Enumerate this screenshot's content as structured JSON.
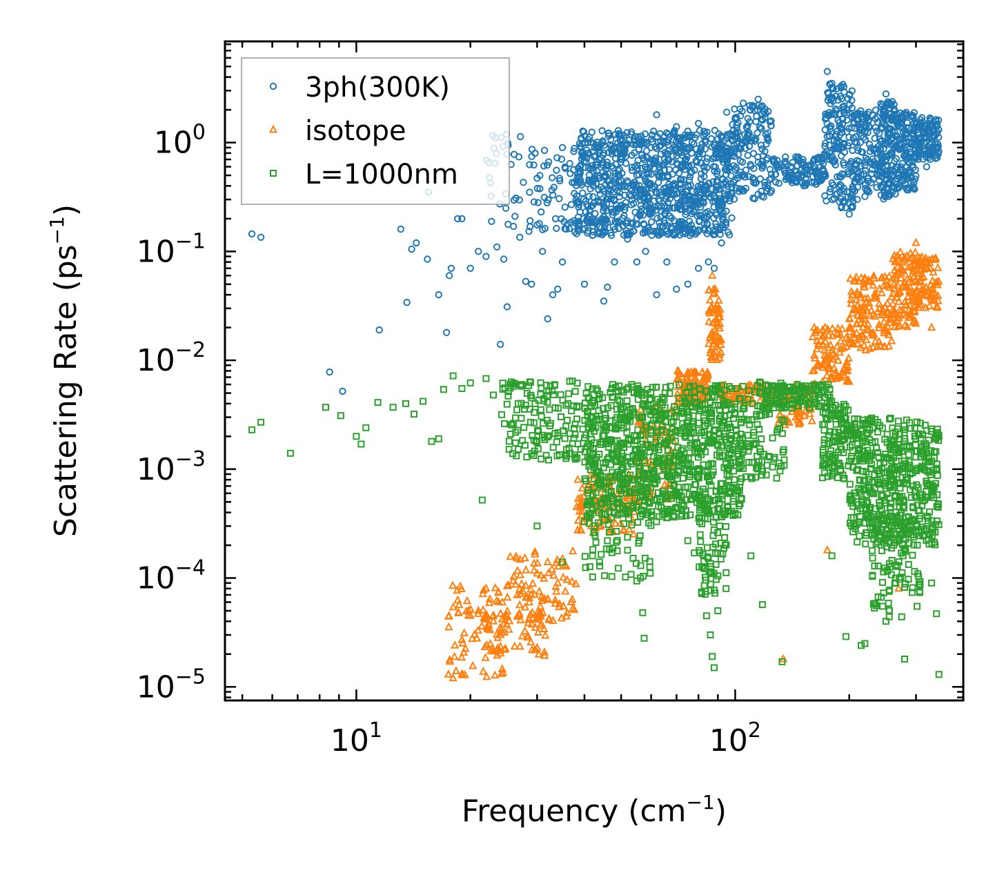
{
  "chart_data": {
    "type": "scatter",
    "xscale": "log",
    "yscale": "log",
    "xlim": [
      4.5,
      400
    ],
    "ylim": [
      7.5e-06,
      8.5
    ],
    "xlabel": "Frequency (cm",
    "xlabel_exp": "−1",
    "xlabel_close": ")",
    "ylabel": "Scattering Rate (ps",
    "ylabel_exp": "−1",
    "ylabel_close": ")",
    "x_ticks": [
      {
        "value": 10,
        "base": "10",
        "exp": "1"
      },
      {
        "value": 100,
        "base": "10",
        "exp": "2"
      }
    ],
    "y_ticks": [
      {
        "value": 1,
        "base": "10",
        "exp": "0"
      },
      {
        "value": 0.1,
        "base": "10",
        "exp": "−1"
      },
      {
        "value": 0.01,
        "base": "10",
        "exp": "−2"
      },
      {
        "value": 0.001,
        "base": "10",
        "exp": "−3"
      },
      {
        "value": 0.0001,
        "base": "10",
        "exp": "−4"
      },
      {
        "value": 1e-05,
        "base": "10",
        "exp": "−5"
      }
    ],
    "legend_position": "upper-left",
    "series": [
      {
        "name": "3ph(300K)",
        "marker": "circle",
        "color": "#1f77b4",
        "points": [
          [
            5.3,
            0.145
          ],
          [
            5.6,
            0.135
          ],
          [
            8.5,
            0.0078
          ],
          [
            9.2,
            0.0052
          ],
          [
            11.5,
            0.019
          ],
          [
            13.1,
            0.16
          ],
          [
            13.6,
            0.034
          ],
          [
            14,
            0.105
          ],
          [
            14.4,
            0.12
          ],
          [
            15.4,
            0.085
          ],
          [
            15.5,
            0.35
          ],
          [
            16.5,
            0.04
          ],
          [
            17.3,
            0.018
          ],
          [
            17.6,
            0.06
          ],
          [
            17.8,
            0.07
          ],
          [
            18.5,
            0.2
          ],
          [
            19,
            0.2
          ],
          [
            20,
            0.07
          ],
          [
            21,
            0.1
          ],
          [
            22,
            0.09
          ],
          [
            23.5,
            0.11
          ],
          [
            24,
            0.014
          ],
          [
            24.5,
            0.085
          ],
          [
            25,
            0.031
          ],
          [
            26,
            0.17
          ],
          [
            27,
            0.135
          ],
          [
            28,
            0.053
          ],
          [
            29,
            0.05
          ],
          [
            30,
            0.47
          ],
          [
            31,
            0.1
          ],
          [
            32,
            0.024
          ],
          [
            33,
            0.04
          ],
          [
            34,
            0.045
          ],
          [
            35,
            0.08
          ],
          [
            38,
            0.3
          ],
          [
            40,
            0.05
          ],
          [
            42,
            0.2
          ],
          [
            44,
            0.15
          ],
          [
            45,
            0.035
          ],
          [
            46,
            0.047
          ],
          [
            48,
            0.08
          ],
          [
            52,
            0.13
          ],
          [
            55,
            0.08
          ],
          [
            58,
            0.1
          ],
          [
            62,
            0.04
          ],
          [
            66,
            0.08
          ],
          [
            70,
            0.045
          ],
          [
            75,
            0.05
          ],
          [
            80,
            0.07
          ],
          [
            85,
            0.08
          ],
          [
            88,
            0.07
          ],
          [
            92,
            0.12
          ],
          [
            62,
            1.8
          ],
          [
            70,
            1.4
          ],
          [
            80,
            1.5
          ],
          [
            95,
            1.9
          ],
          [
            105,
            2.3
          ],
          [
            115,
            2.5
          ],
          [
            175,
            4.5
          ],
          [
            180,
            3.5
          ],
          [
            250,
            2.8
          ],
          [
            300,
            1.5
          ],
          [
            340,
            1.2
          ],
          [
            35,
            0.9
          ],
          [
            45,
            0.8
          ],
          [
            55,
            0.5
          ],
          [
            150,
            0.5
          ],
          [
            160,
            0.55
          ],
          [
            200,
            0.22
          ],
          [
            210,
            0.3
          ],
          [
            220,
            0.32
          ],
          [
            240,
            0.45
          ],
          [
            260,
            0.35
          ],
          [
            270,
            0.5
          ],
          [
            280,
            1.3
          ],
          [
            320,
            0.6
          ]
        ],
        "segments": [
          {
            "x0": 38,
            "x1": 98,
            "ylo": 0.14,
            "yhi": 1.3,
            "n": 950
          },
          {
            "x0": 98,
            "x1": 125,
            "ylo": 0.3,
            "yhi": 2.2,
            "n": 160
          },
          {
            "x0": 28,
            "x1": 38,
            "ylo": 0.15,
            "yhi": 0.9,
            "n": 60
          },
          {
            "x0": 22,
            "x1": 28,
            "ylo": 0.15,
            "yhi": 1.2,
            "n": 30
          },
          {
            "x0": 125,
            "x1": 172,
            "ylo": 0.4,
            "yhi": 0.75,
            "n": 110
          },
          {
            "x0": 172,
            "x1": 205,
            "ylo": 0.25,
            "yhi": 3.5,
            "n": 170
          },
          {
            "x0": 205,
            "x1": 240,
            "ylo": 0.35,
            "yhi": 2.0,
            "n": 120
          },
          {
            "x0": 240,
            "x1": 265,
            "ylo": 0.3,
            "yhi": 2.4,
            "n": 140
          },
          {
            "x0": 265,
            "x1": 300,
            "ylo": 0.35,
            "yhi": 1.9,
            "n": 130
          },
          {
            "x0": 300,
            "x1": 345,
            "ylo": 0.7,
            "yhi": 1.7,
            "n": 110
          }
        ]
      },
      {
        "name": "isotope",
        "marker": "triangle",
        "color": "#ff7f0e",
        "points": [
          [
            17.5,
            1.3e-05
          ],
          [
            18,
            1.2e-05
          ],
          [
            18.2,
            2.4e-05
          ],
          [
            19,
            2.7e-05
          ],
          [
            20,
            4.5e-05
          ],
          [
            21,
            5e-05
          ],
          [
            22,
            8e-05
          ],
          [
            23,
            4e-05
          ],
          [
            24,
            3e-05
          ],
          [
            25,
            4.5e-05
          ],
          [
            28,
            8.5e-05
          ],
          [
            30,
            0.00011
          ],
          [
            32,
            0.00014
          ],
          [
            35,
            0.00015
          ],
          [
            134,
            1.8e-05
          ],
          [
            175,
            0.00018
          ],
          [
            270,
            8e-05
          ],
          [
            330,
            0.02
          ],
          [
            345,
            0.002
          ],
          [
            87,
            0.06
          ],
          [
            89,
            0.03
          ],
          [
            300,
            0.12
          ],
          [
            320,
            0.08
          ],
          [
            145,
            0.004
          ],
          [
            165,
            0.009
          ]
        ],
        "segments": [
          {
            "x0": 17.5,
            "x1": 25,
            "ylo": 1.2e-05,
            "yhi": 9e-05,
            "n": 70
          },
          {
            "x0": 22,
            "x1": 32,
            "ylo": 1.8e-05,
            "yhi": 7e-05,
            "n": 60
          },
          {
            "x0": 25,
            "x1": 38,
            "ylo": 4e-05,
            "yhi": 0.00018,
            "n": 80
          },
          {
            "x0": 38,
            "x1": 55,
            "ylo": 0.00025,
            "yhi": 0.0009,
            "n": 110
          },
          {
            "x0": 55,
            "x1": 70,
            "ylo": 0.0005,
            "yhi": 0.004,
            "n": 80
          },
          {
            "x0": 70,
            "x1": 85,
            "ylo": 0.004,
            "yhi": 0.008,
            "n": 90
          },
          {
            "x0": 85,
            "x1": 92,
            "ylo": 0.01,
            "yhi": 0.045,
            "n": 60
          },
          {
            "x0": 92,
            "x1": 130,
            "ylo": 0.004,
            "yhi": 0.006,
            "n": 70
          },
          {
            "x0": 130,
            "x1": 160,
            "ylo": 0.0025,
            "yhi": 0.006,
            "n": 60
          },
          {
            "x0": 160,
            "x1": 200,
            "ylo": 0.006,
            "yhi": 0.02,
            "n": 90
          },
          {
            "x0": 200,
            "x1": 260,
            "ylo": 0.012,
            "yhi": 0.06,
            "n": 140
          },
          {
            "x0": 260,
            "x1": 300,
            "ylo": 0.02,
            "yhi": 0.1,
            "n": 100
          },
          {
            "x0": 300,
            "x1": 345,
            "ylo": 0.03,
            "yhi": 0.09,
            "n": 80
          }
        ]
      },
      {
        "name": "L=1000nm",
        "marker": "square",
        "color": "#2ca02c",
        "points": [
          [
            5.3,
            0.0023
          ],
          [
            5.6,
            0.0027
          ],
          [
            6.7,
            0.0014
          ],
          [
            8.3,
            0.0037
          ],
          [
            9.1,
            0.0031
          ],
          [
            10,
            0.002
          ],
          [
            10.3,
            0.0017
          ],
          [
            10.6,
            0.0024
          ],
          [
            11.4,
            0.0041
          ],
          [
            12.5,
            0.0037
          ],
          [
            13.5,
            0.004
          ],
          [
            14.2,
            0.0032
          ],
          [
            15,
            0.0042
          ],
          [
            15.8,
            0.0018
          ],
          [
            16.5,
            0.0019
          ],
          [
            17,
            0.0054
          ],
          [
            18,
            0.0072
          ],
          [
            19,
            0.0055
          ],
          [
            20,
            0.0062
          ],
          [
            21.5,
            0.00052
          ],
          [
            22,
            0.0068
          ],
          [
            23,
            0.0048
          ],
          [
            30,
            0.0003
          ],
          [
            35,
            0.00014
          ],
          [
            40,
            0.00033
          ],
          [
            42,
            0.00016
          ],
          [
            46,
            0.00022
          ],
          [
            52,
            0.00018
          ],
          [
            55,
            9.4e-05
          ],
          [
            57,
            4.8e-05
          ],
          [
            57.5,
            2.8e-05
          ],
          [
            62,
            0.00033
          ],
          [
            75,
            0.00022
          ],
          [
            78,
            0.00017
          ],
          [
            84,
            4.5e-05
          ],
          [
            86,
            3e-05
          ],
          [
            87,
            1.9e-05
          ],
          [
            88,
            1.5e-05
          ],
          [
            90,
            5e-05
          ],
          [
            110,
            0.00016
          ],
          [
            118,
            5.7e-05
          ],
          [
            133,
            1.7e-05
          ],
          [
            180,
            0.00016
          ],
          [
            196,
            2.9e-05
          ],
          [
            215,
            2.4e-05
          ],
          [
            220,
            2.5e-05
          ],
          [
            250,
            4e-05
          ],
          [
            255,
            4.4e-05
          ],
          [
            265,
            0.0001
          ],
          [
            275,
            4.4e-05
          ],
          [
            280,
            1.8e-05
          ],
          [
            330,
            9e-05
          ],
          [
            340,
            4.7e-05
          ],
          [
            345,
            1.3e-05
          ]
        ],
        "segments": [
          {
            "x0": 24,
            "x1": 40,
            "ylo": 0.0012,
            "yhi": 0.0065,
            "n": 140
          },
          {
            "x0": 40,
            "x1": 105,
            "ylo": 0.00035,
            "yhi": 0.006,
            "n": 900
          },
          {
            "x0": 40,
            "x1": 60,
            "ylo": 0.0001,
            "yhi": 0.0005,
            "n": 60
          },
          {
            "x0": 80,
            "x1": 95,
            "ylo": 7e-05,
            "yhi": 0.0006,
            "n": 80
          },
          {
            "x0": 105,
            "x1": 135,
            "ylo": 0.0008,
            "yhi": 0.0065,
            "n": 100
          },
          {
            "x0": 120,
            "x1": 180,
            "ylo": 0.0036,
            "yhi": 0.006,
            "n": 120
          },
          {
            "x0": 170,
            "x1": 200,
            "ylo": 0.0008,
            "yhi": 0.004,
            "n": 100
          },
          {
            "x0": 200,
            "x1": 345,
            "ylo": 0.0002,
            "yhi": 0.003,
            "n": 500
          },
          {
            "x0": 230,
            "x1": 310,
            "ylo": 5e-05,
            "yhi": 0.0004,
            "n": 100
          }
        ]
      }
    ]
  }
}
